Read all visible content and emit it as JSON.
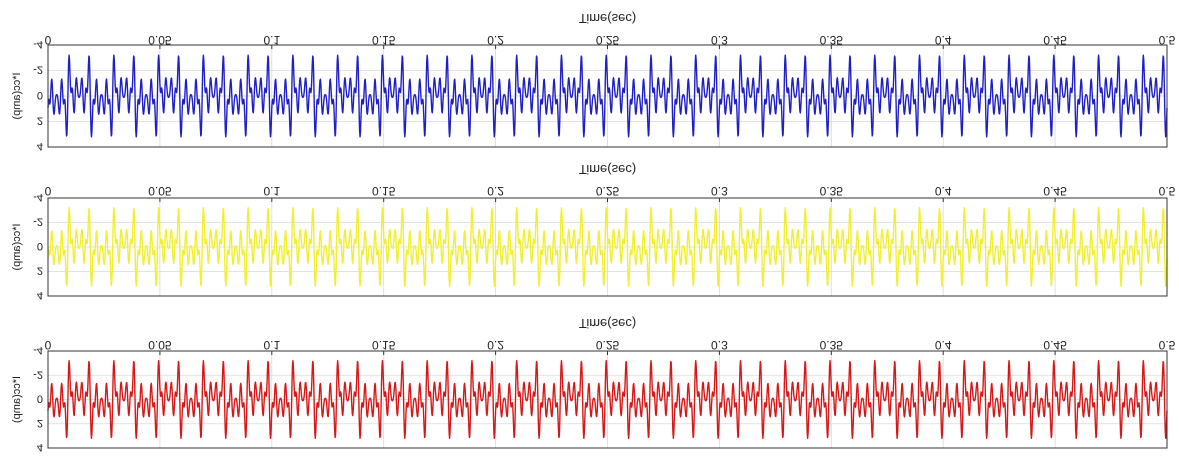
{
  "chart_data": [
    {
      "type": "line",
      "title": "",
      "xlabel": "Time(sec)",
      "ylabel": "I*cc(amp)",
      "xlim": [
        0,
        0.5
      ],
      "ylim": [
        -4,
        4
      ],
      "x_ticks": [
        "0",
        "0.05",
        "0.1",
        "0.15",
        "0.2",
        "0.25",
        "0.3",
        "0.35",
        "0.4",
        "0.45",
        "0.5"
      ],
      "y_ticks": [
        "4",
        "2",
        "0",
        "-2",
        "-4"
      ],
      "y_tick_values": [
        4,
        2,
        0,
        -2,
        -4
      ],
      "grid": true,
      "mirrored": true,
      "series": [
        {
          "color": "#1f1fc8",
          "fundamental_hz": 50,
          "peak_amp": 3.2,
          "harmonics": [
            [
              1,
              0.4
            ],
            [
              3,
              0.3
            ],
            [
              5,
              0.9
            ],
            [
              7,
              1.0
            ],
            [
              11,
              0.7
            ],
            [
              13,
              0.6
            ]
          ]
        }
      ]
    },
    {
      "type": "line",
      "title": "",
      "xlabel": "Time(sec)",
      "ylabel": "I*cc(amp)",
      "xlim": [
        0,
        0.5
      ],
      "ylim": [
        -4,
        4
      ],
      "x_ticks": [
        "0",
        "0.05",
        "0.1",
        "0.15",
        "0.2",
        "0.25",
        "0.3",
        "0.35",
        "0.4",
        "0.45",
        "0.5"
      ],
      "y_ticks": [
        "4",
        "2",
        "0",
        "-2",
        "-4"
      ],
      "y_tick_values": [
        4,
        2,
        0,
        -2,
        -4
      ],
      "grid": true,
      "mirrored": true,
      "series": [
        {
          "color": "#f0f030",
          "fundamental_hz": 50,
          "peak_amp": 3.2,
          "harmonics": [
            [
              1,
              0.4
            ],
            [
              3,
              0.3
            ],
            [
              5,
              0.9
            ],
            [
              7,
              1.0
            ],
            [
              11,
              0.7
            ],
            [
              13,
              0.6
            ]
          ]
        }
      ]
    },
    {
      "type": "line",
      "title": "",
      "xlabel": "Time(sec)",
      "ylabel": "I*cc(amp)",
      "xlim": [
        0,
        0.5
      ],
      "ylim": [
        -4,
        4
      ],
      "x_ticks": [
        "0",
        "0.05",
        "0.1",
        "0.15",
        "0.2",
        "0.25",
        "0.3",
        "0.35",
        "0.4",
        "0.45",
        "0.5"
      ],
      "y_ticks": [
        "4",
        "2",
        "0",
        "-2",
        "-4"
      ],
      "y_tick_values": [
        4,
        2,
        0,
        -2,
        -4
      ],
      "grid": true,
      "mirrored": true,
      "series": [
        {
          "color": "#d81818",
          "fundamental_hz": 50,
          "peak_amp": 3.2,
          "harmonics": [
            [
              1,
              0.4
            ],
            [
              3,
              0.3
            ],
            [
              5,
              0.9
            ],
            [
              7,
              1.0
            ],
            [
              11,
              0.7
            ],
            [
              13,
              0.6
            ]
          ]
        }
      ]
    }
  ]
}
